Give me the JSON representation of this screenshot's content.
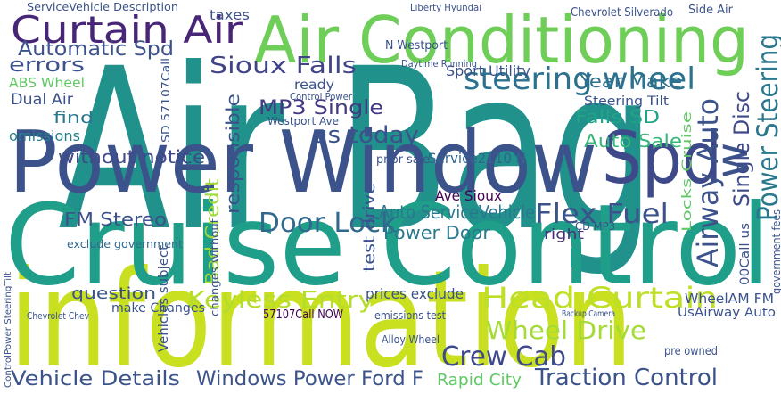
{
  "words": [
    {
      "text": "Air Bag",
      "color": "#21918c"
    },
    {
      "text": "information",
      "color": "#c8e020"
    },
    {
      "text": "Cruise Control",
      "color": "#1f9e89"
    },
    {
      "text": "Power Window",
      "color": "#3b528b"
    },
    {
      "text": "Air Conditioning",
      "color": "#6ece58"
    },
    {
      "text": "Spd",
      "color": "#3e4989"
    },
    {
      "text": "Curtain Air",
      "color": "#482677"
    },
    {
      "text": "steering wheel",
      "color": "#2c728e"
    },
    {
      "text": "Automatic Spd",
      "color": "#3b528b"
    },
    {
      "text": "Sioux Falls",
      "color": "#414487"
    },
    {
      "text": "errors",
      "color": "#3b528b"
    },
    {
      "text": "ABS Wheel",
      "color": "#5ec962"
    },
    {
      "text": "Dual Air",
      "color": "#3b528b"
    },
    {
      "text": "find",
      "color": "#2a788e"
    },
    {
      "text": "omissions",
      "color": "#277f8e"
    },
    {
      "text": "MP3 Single",
      "color": "#443983"
    },
    {
      "text": "us today",
      "color": "#3b528b"
    },
    {
      "text": "without notice",
      "color": "#3e4a89"
    },
    {
      "text": "Year Make",
      "color": "#2d718e"
    },
    {
      "text": "Steering Tilt",
      "color": "#3b528b"
    },
    {
      "text": "Falls SD",
      "color": "#20a486"
    },
    {
      "text": "Auto Sale",
      "color": "#35b779"
    },
    {
      "text": "Service2110 N",
      "color": "#31668e"
    },
    {
      "text": "Ave Sioux",
      "color": "#440154"
    },
    {
      "text": "Auto ServiceVehicle",
      "color": "#2a788e"
    },
    {
      "text": "FM Stereo",
      "color": "#3b528b"
    },
    {
      "text": "Door Lock",
      "color": "#31688e"
    },
    {
      "text": "Flex Fuel",
      "color": "#3b528b"
    },
    {
      "text": "Power Door",
      "color": "#2a788e"
    },
    {
      "text": "right",
      "color": "#46337e"
    },
    {
      "text": "Keyless Entry",
      "color": "#b5de2b"
    },
    {
      "text": "Head Curtain",
      "color": "#bddf26"
    },
    {
      "text": "Wheel Drive",
      "color": "#a5db36"
    },
    {
      "text": "Crew Cab",
      "color": "#3e4a89"
    },
    {
      "text": "Vehicle Details",
      "color": "#3b528b"
    },
    {
      "text": "Windows Power Ford F",
      "color": "#3b528b"
    },
    {
      "text": "Traction Control",
      "color": "#3b528b"
    },
    {
      "text": "Rapid City",
      "color": "#5ec962"
    },
    {
      "text": "question",
      "color": "#3b528b"
    },
    {
      "text": "make Changes",
      "color": "#3b528b"
    },
    {
      "text": "57107Call NOW",
      "color": "#440154"
    },
    {
      "text": "prices exclude",
      "color": "#3b528b"
    },
    {
      "text": "exclude government",
      "color": "#31688e"
    },
    {
      "text": "taxes",
      "color": "#3b528b"
    },
    {
      "text": "ServiceVehicle Description",
      "color": "#3b528b"
    },
    {
      "text": "Chevrolet Silverado",
      "color": "#3b528b"
    },
    {
      "text": "Side Air",
      "color": "#3b528b"
    },
    {
      "text": "Liberty Hyundai",
      "color": "#3b528b"
    },
    {
      "text": "ready",
      "color": "#3b528b"
    },
    {
      "text": "Sport Utility",
      "color": "#3b528b"
    },
    {
      "text": "UsAirway Auto",
      "color": "#3b528b"
    },
    {
      "text": "emissions test",
      "color": "#3b528b"
    },
    {
      "text": "Alloy Wheel",
      "color": "#3b528b"
    },
    {
      "text": "Chevrolet Chev",
      "color": "#3b528b"
    },
    {
      "text": "pre owned",
      "color": "#3b528b"
    },
    {
      "text": "CD MP3",
      "color": "#3b528b"
    },
    {
      "text": "Control Power",
      "color": "#3b528b"
    },
    {
      "text": "Westport Ave",
      "color": "#3b528b"
    },
    {
      "text": "N Westport",
      "color": "#3b528b"
    },
    {
      "text": "Daytime Running",
      "color": "#3b528b"
    },
    {
      "text": "prior sale",
      "color": "#3b528b"
    },
    {
      "text": "WheelAM FM",
      "color": "#3b528b"
    },
    {
      "text": "Backup Camera",
      "color": "#3b528b"
    },
    {
      "text": "Power Steering",
      "color": "#2a788e"
    },
    {
      "text": "w",
      "color": "#3b528b"
    },
    {
      "text": "Single Disc",
      "color": "#3e4a89"
    },
    {
      "text": "Airway Auto",
      "color": "#3b528b"
    },
    {
      "text": "Locks Cruise",
      "color": "#5ec962"
    },
    {
      "text": "responsible",
      "color": "#3b528b"
    },
    {
      "text": "Bad Credit",
      "color": "#a0da39"
    },
    {
      "text": "test drive",
      "color": "#3b528b"
    },
    {
      "text": "Vehicles subject",
      "color": "#3b528b"
    },
    {
      "text": "changes without",
      "color": "#3b528b"
    },
    {
      "text": "government fees",
      "color": "#3b528b"
    },
    {
      "text": "00Call us",
      "color": "#3b528b"
    },
    {
      "text": "SD 57107Call",
      "color": "#3b528b"
    },
    {
      "text": "ControlPower SteeringTilt",
      "color": "#3b528b"
    }
  ]
}
